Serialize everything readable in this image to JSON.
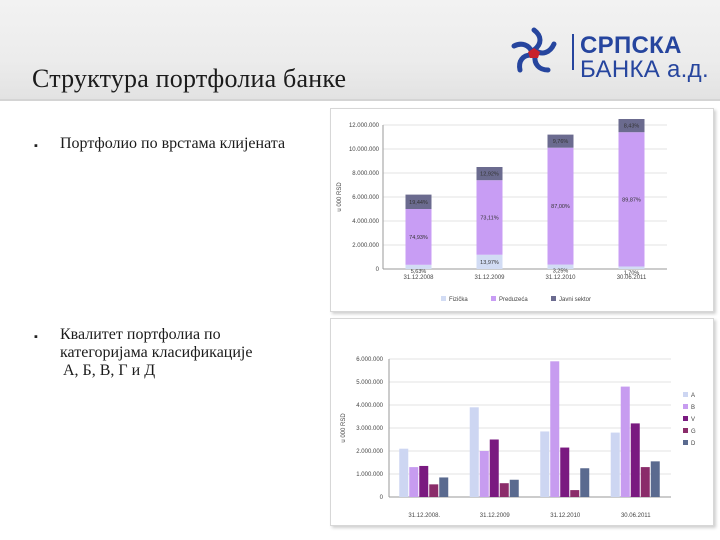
{
  "header": {
    "title": "Структура портфолиа банке"
  },
  "logo": {
    "line1": "СРПСКА",
    "line2": "БАНКА а.д.",
    "mark_icon": "srpska-banka-star-icon"
  },
  "bullets": [
    {
      "icon": "square-bullet-icon",
      "glyph": "▪",
      "text": "Портфолио по врстама клијената"
    },
    {
      "icon": "square-bullet-icon",
      "glyph": "▪",
      "line1": "Квалитет портфолиа по",
      "line2": "категоријама класификације",
      "line3": "А, Б, В, Г и Д"
    }
  ],
  "chart_data": [
    {
      "type": "bar",
      "stacked": true,
      "ylabel": "u 000 RSD",
      "categories": [
        "31.12.2008",
        "31.12.2009",
        "31.12.2010",
        "30.06.2011"
      ],
      "ylim": [
        0,
        12000000
      ],
      "yticks": [
        "0",
        "2.000.000",
        "4.000.000",
        "6.000.000",
        "8.000.000",
        "10.000.000",
        "12.000.000"
      ],
      "totals": [
        6200000,
        8500000,
        11200000,
        12500000
      ],
      "series": [
        {
          "name": "Fizička",
          "color": "#d2dcf4",
          "values": [
            350000,
            1190000,
            370000,
            210000
          ],
          "labels": [
            "5,63%",
            "13,97%",
            "3,25%",
            "1,70%"
          ]
        },
        {
          "name": "Preduzeća",
          "color": "#c89df4",
          "values": [
            4650000,
            6210000,
            9740000,
            11190000
          ],
          "labels": [
            "74,93%",
            "73,11%",
            "87,00%",
            "89,87%"
          ]
        },
        {
          "name": "Javni sektor",
          "color": "#6b6b8f",
          "values": [
            1200000,
            1100000,
            1090000,
            1100000
          ],
          "labels": [
            "19,44%",
            "12,92%",
            "9,76%",
            "8,43%"
          ]
        }
      ],
      "legend_position": "bottom",
      "grid": true
    },
    {
      "type": "bar",
      "ylabel": "u 000 RSD",
      "categories": [
        "31.12.2008.",
        "31.12.2009",
        "31.12.2010",
        "30.06.2011"
      ],
      "ylim": [
        0,
        6000000
      ],
      "yticks": [
        "0",
        "1.000.000",
        "2.000.000",
        "3.000.000",
        "4.000.000",
        "5.000.000",
        "6.000.000"
      ],
      "series": [
        {
          "name": "A",
          "color": "#cdd6f2",
          "values": [
            2100000,
            3900000,
            2850000,
            2800000
          ]
        },
        {
          "name": "B",
          "color": "#c79cf0",
          "values": [
            1300000,
            2000000,
            5900000,
            4800000
          ]
        },
        {
          "name": "V",
          "color": "#7a1a80",
          "values": [
            1350000,
            2500000,
            2150000,
            3200000
          ]
        },
        {
          "name": "G",
          "color": "#8a2c6a",
          "values": [
            550000,
            600000,
            300000,
            1300000
          ]
        },
        {
          "name": "D",
          "color": "#5a6a8f",
          "values": [
            850000,
            750000,
            1250000,
            1550000
          ]
        }
      ],
      "legend_position": "right",
      "grid": true
    }
  ]
}
